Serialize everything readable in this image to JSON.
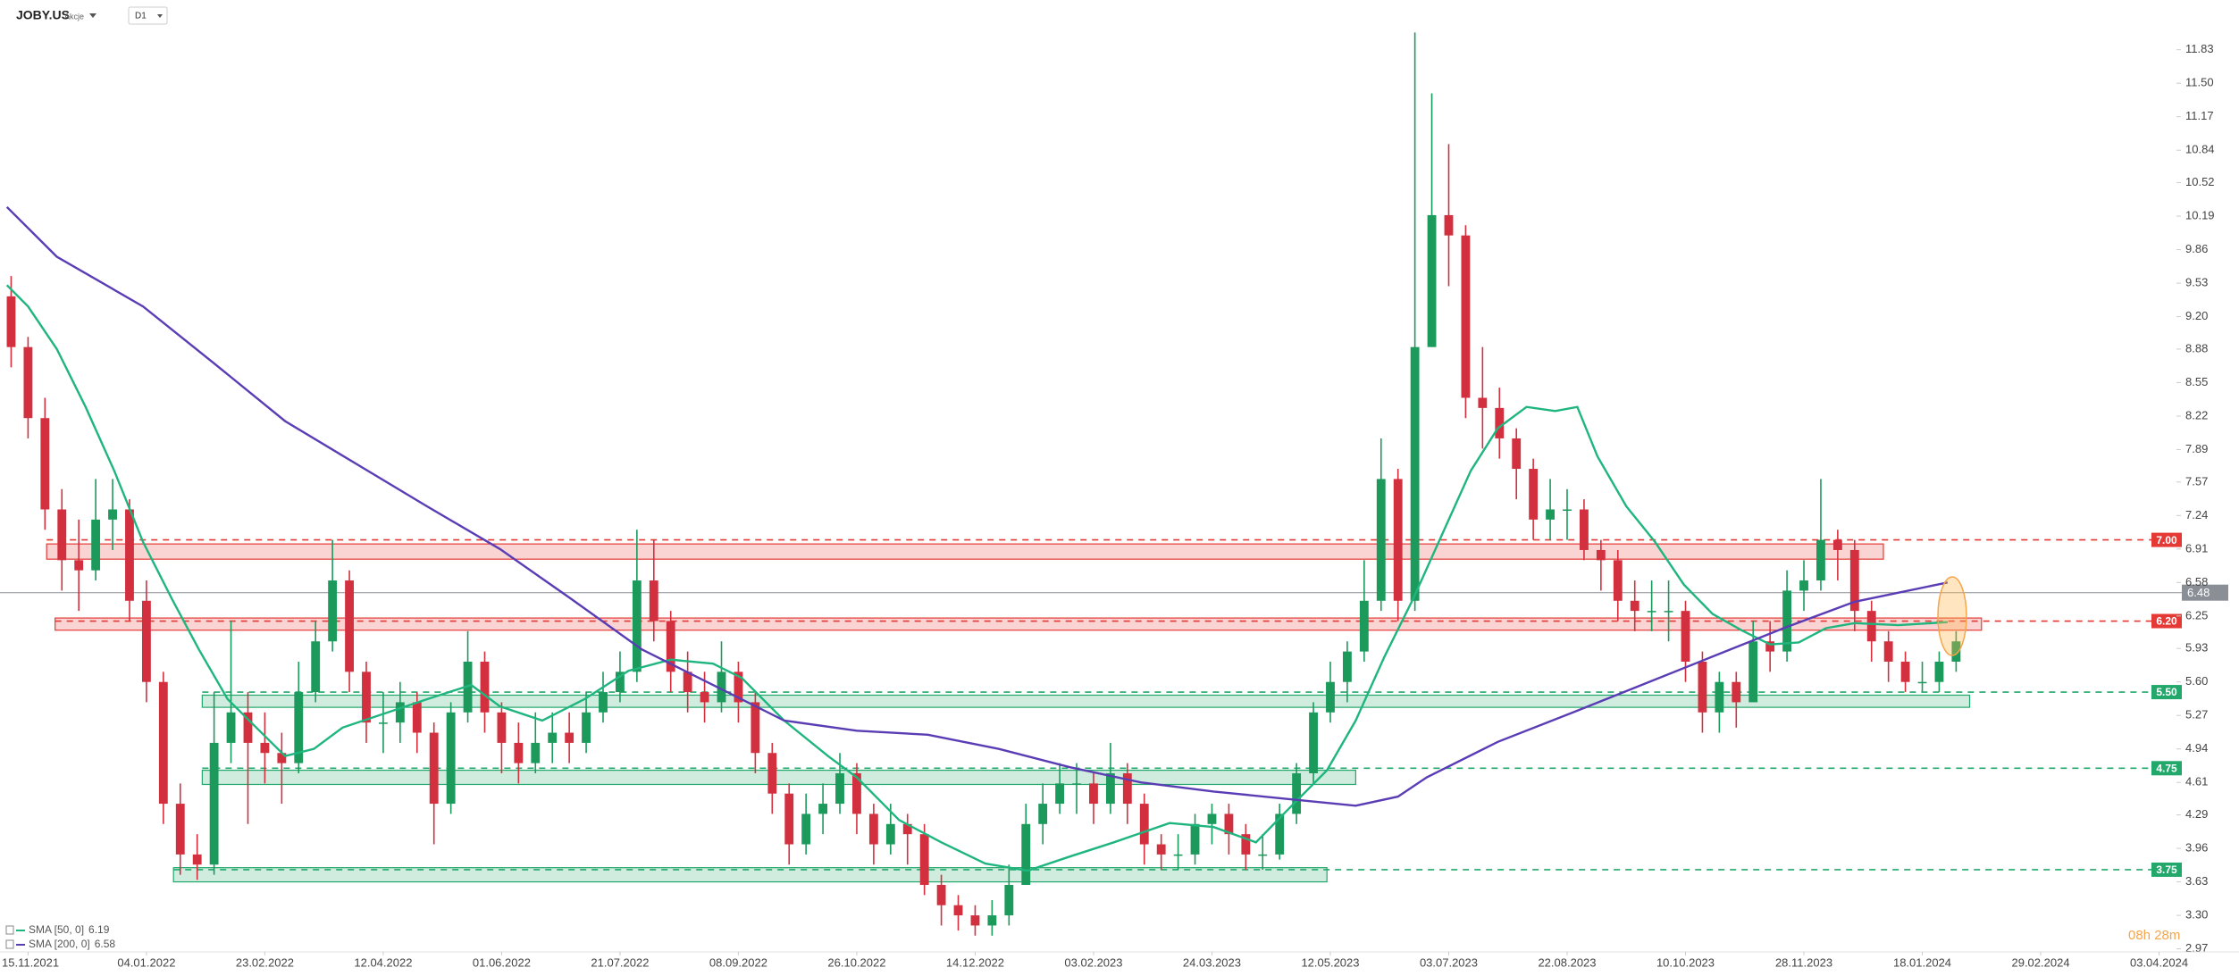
{
  "header": {
    "symbol": "JOBY.US",
    "asset_class": "Akcje",
    "timeframe": "D1"
  },
  "timer": "08h 28m",
  "chart_data": {
    "type": "candlestick",
    "up_color": "#1b9a5c",
    "down_color": "#d3303f",
    "open": [
      9.4,
      8.9,
      8.2,
      7.3,
      6.8,
      6.7,
      7.2,
      7.3,
      6.4,
      5.6,
      4.4,
      3.9,
      3.8,
      5.0,
      5.3,
      5.0,
      4.9,
      4.8,
      5.5,
      6.0,
      6.6,
      5.7,
      5.2,
      5.2,
      5.4,
      5.1,
      4.4,
      5.3,
      5.8,
      5.3,
      5.0,
      4.8,
      5.0,
      5.1,
      5.0,
      5.3,
      5.5,
      5.7,
      6.6,
      6.2,
      5.7,
      5.5,
      5.4,
      5.7,
      5.4,
      4.9,
      4.5,
      4.0,
      4.3,
      4.4,
      4.7,
      4.3,
      4.0,
      4.2,
      4.1,
      3.6,
      3.4,
      3.3,
      3.2,
      3.3,
      3.6,
      4.2,
      4.4,
      4.6,
      4.6,
      4.4,
      4.7,
      4.4,
      4.0,
      3.9,
      3.9,
      4.2,
      4.3,
      4.1,
      3.9,
      3.9,
      4.3,
      4.7,
      5.3,
      5.6,
      5.9,
      6.4,
      7.6,
      6.4,
      8.9,
      10.2,
      10.0,
      8.4,
      8.3,
      8.0,
      7.7,
      7.2,
      7.3,
      7.3,
      6.9,
      6.8,
      6.4,
      6.3,
      6.3,
      6.3,
      5.8,
      5.3,
      5.6,
      5.4,
      6.0,
      5.9,
      6.5,
      6.6,
      7.0,
      6.9,
      6.3,
      6.0,
      5.8,
      5.6,
      5.6,
      5.8
    ],
    "high": [
      9.6,
      9.0,
      8.4,
      7.5,
      7.2,
      7.6,
      7.6,
      7.4,
      6.6,
      5.7,
      4.6,
      4.1,
      5.5,
      6.2,
      5.5,
      5.3,
      5.1,
      5.8,
      6.2,
      7.0,
      6.7,
      5.8,
      5.5,
      5.6,
      5.5,
      5.2,
      5.4,
      6.1,
      5.9,
      5.4,
      5.2,
      5.3,
      5.3,
      5.3,
      5.5,
      5.7,
      5.9,
      7.1,
      7.0,
      6.3,
      5.9,
      5.7,
      6.0,
      5.8,
      5.5,
      5.0,
      4.6,
      4.5,
      4.6,
      4.9,
      4.8,
      4.4,
      4.4,
      4.3,
      4.2,
      3.7,
      3.5,
      3.4,
      3.45,
      3.8,
      4.4,
      4.6,
      4.8,
      4.8,
      4.7,
      5.0,
      4.8,
      4.5,
      4.1,
      4.1,
      4.3,
      4.4,
      4.4,
      4.2,
      4.1,
      4.4,
      4.8,
      5.4,
      5.8,
      6.0,
      6.8,
      8.0,
      7.7,
      12.0,
      11.4,
      10.9,
      10.1,
      8.9,
      8.5,
      8.1,
      7.8,
      7.6,
      7.5,
      7.4,
      7.0,
      6.9,
      6.6,
      6.6,
      6.6,
      6.4,
      5.9,
      5.7,
      5.7,
      6.2,
      6.2,
      6.7,
      6.8,
      7.6,
      7.1,
      7.0,
      6.4,
      6.1,
      5.9,
      5.8,
      5.9,
      6.1
    ],
    "low": [
      8.7,
      8.0,
      7.1,
      6.5,
      6.3,
      6.6,
      6.9,
      6.2,
      5.4,
      4.2,
      3.7,
      3.65,
      3.7,
      4.8,
      4.2,
      4.6,
      4.4,
      4.7,
      5.4,
      5.9,
      5.5,
      5.0,
      4.9,
      5.0,
      4.9,
      4.0,
      4.3,
      5.2,
      5.1,
      4.7,
      4.6,
      4.7,
      4.8,
      4.8,
      4.9,
      5.2,
      5.4,
      5.6,
      6.0,
      5.5,
      5.3,
      5.2,
      5.3,
      5.2,
      4.7,
      4.3,
      3.8,
      3.9,
      4.1,
      4.3,
      4.1,
      3.8,
      3.9,
      3.8,
      3.5,
      3.2,
      3.15,
      3.1,
      3.1,
      3.2,
      3.6,
      4.0,
      4.3,
      4.3,
      4.2,
      4.3,
      4.2,
      3.8,
      3.75,
      3.75,
      3.8,
      4.0,
      3.9,
      3.75,
      3.75,
      3.85,
      4.2,
      4.6,
      5.2,
      5.4,
      5.8,
      6.3,
      6.2,
      6.3,
      8.9,
      9.5,
      8.2,
      7.9,
      7.8,
      7.4,
      7.0,
      7.0,
      7.0,
      6.8,
      6.5,
      6.2,
      6.1,
      6.1,
      6.0,
      5.6,
      5.1,
      5.1,
      5.15,
      5.4,
      5.7,
      5.8,
      6.3,
      6.5,
      6.6,
      6.1,
      5.8,
      5.6,
      5.5,
      5.5,
      5.5,
      5.7
    ],
    "close": [
      8.9,
      8.2,
      7.3,
      6.8,
      6.7,
      7.2,
      7.3,
      6.4,
      5.6,
      4.4,
      3.9,
      3.8,
      5.0,
      5.3,
      5.0,
      4.9,
      4.8,
      5.5,
      6.0,
      6.6,
      5.7,
      5.2,
      5.2,
      5.4,
      5.1,
      4.4,
      5.3,
      5.8,
      5.3,
      5.0,
      4.8,
      5.0,
      5.1,
      5.0,
      5.3,
      5.5,
      5.7,
      6.6,
      6.2,
      5.7,
      5.5,
      5.4,
      5.7,
      5.4,
      4.9,
      4.5,
      4.0,
      4.3,
      4.4,
      4.7,
      4.3,
      4.0,
      4.2,
      4.1,
      3.6,
      3.4,
      3.3,
      3.2,
      3.3,
      3.6,
      4.2,
      4.4,
      4.6,
      4.6,
      4.4,
      4.7,
      4.4,
      4.0,
      3.9,
      3.9,
      4.2,
      4.3,
      4.1,
      3.9,
      3.9,
      4.3,
      4.7,
      5.3,
      5.6,
      5.9,
      6.4,
      7.6,
      6.4,
      8.9,
      10.2,
      10.0,
      8.4,
      8.3,
      8.0,
      7.7,
      7.2,
      7.3,
      7.3,
      6.9,
      6.8,
      6.4,
      6.3,
      6.3,
      6.3,
      5.8,
      5.3,
      5.6,
      5.4,
      6.0,
      5.9,
      6.5,
      6.6,
      7.0,
      6.9,
      6.3,
      6.0,
      5.8,
      5.6,
      5.6,
      5.8,
      6.0
    ],
    "series": [
      {
        "name": "SMA [50, 0]",
        "color": "#1fb57e",
        "last": 6.19,
        "x": [
          0.25,
          1.5,
          3.2,
          4.9,
          6.6,
          8.3,
          10,
          11.6,
          13.3,
          15,
          16.7,
          18.4,
          20.1,
          22.6,
          25.1,
          27.7,
          29.4,
          31.9,
          34.4,
          37,
          39.5,
          42,
          43.7,
          46.2,
          48.8,
          50.5,
          53,
          55.5,
          58.1,
          60.6,
          63.1,
          65.7,
          69,
          71.6,
          74.1,
          75.8,
          78.3,
          80,
          81.7,
          83.4,
          85.1,
          86.8,
          88.4,
          90.1,
          91.8,
          93.1,
          94.3,
          96,
          97.7,
          99.4,
          101.1,
          102.8,
          104.5,
          106.2,
          107.8,
          109.5,
          112.1,
          115
        ],
        "values": [
          9.51,
          9.3,
          8.88,
          8.31,
          7.68,
          6.98,
          6.42,
          5.92,
          5.43,
          5.15,
          4.87,
          4.94,
          5.15,
          5.29,
          5.43,
          5.57,
          5.36,
          5.22,
          5.43,
          5.71,
          5.82,
          5.78,
          5.64,
          5.22,
          4.87,
          4.66,
          4.24,
          4.02,
          3.81,
          3.74,
          3.88,
          4.02,
          4.21,
          4.17,
          4.02,
          4.31,
          4.73,
          5.22,
          5.85,
          6.42,
          7.05,
          7.68,
          8.1,
          8.31,
          8.27,
          8.31,
          7.82,
          7.33,
          6.98,
          6.56,
          6.27,
          6.11,
          5.97,
          5.99,
          6.13,
          6.18,
          6.16,
          6.19
        ]
      },
      {
        "name": "SMA [200, 0]",
        "color": "#5a3db5",
        "last": 6.58,
        "x": [
          0.25,
          3.2,
          8.3,
          12.5,
          16.7,
          20.9,
          25.1,
          29.4,
          33.6,
          37.8,
          42,
          46.2,
          50.5,
          54.7,
          58.9,
          63.1,
          67.3,
          71.6,
          75.8,
          80,
          82.5,
          84.2,
          88.4,
          92.7,
          96.9,
          101.1,
          105.3,
          109.5,
          112.1,
          115
        ],
        "values": [
          10.28,
          9.79,
          9.3,
          8.74,
          8.17,
          7.75,
          7.33,
          6.91,
          6.42,
          5.92,
          5.57,
          5.22,
          5.12,
          5.08,
          4.94,
          4.76,
          4.61,
          4.52,
          4.45,
          4.38,
          4.47,
          4.66,
          5.01,
          5.29,
          5.57,
          5.85,
          6.13,
          6.39,
          6.48,
          6.58
        ]
      }
    ],
    "zones": [
      {
        "x": [
          2.6,
          111.2
        ],
        "range": [
          6.81,
          6.96
        ],
        "color": "#e53935"
      },
      {
        "x": [
          3.1,
          117
        ],
        "range": [
          6.11,
          6.23
        ],
        "color": "#e53935"
      },
      {
        "x": [
          11.8,
          116.3
        ],
        "range": [
          5.35,
          5.47
        ],
        "color": "#23a86b"
      },
      {
        "x": [
          11.8,
          80
        ],
        "range": [
          4.59,
          4.73
        ],
        "color": "#23a86b"
      },
      {
        "x": [
          10.1,
          78.3
        ],
        "range": [
          3.63,
          3.77
        ],
        "color": "#23a86b"
      }
    ],
    "levels": [
      {
        "value": 7,
        "label": "7.00",
        "color": "#e53935",
        "from": 2.6
      },
      {
        "value": 6.2,
        "label": "6.20",
        "color": "#e53935",
        "from": 3.1
      },
      {
        "value": 5.5,
        "label": "5.50",
        "color": "#23a86b",
        "from": 11.8
      },
      {
        "value": 4.75,
        "label": "4.75",
        "color": "#23a86b",
        "from": 11.8
      },
      {
        "value": 3.75,
        "label": "3.75",
        "color": "#23a86b",
        "from": 10.1
      }
    ],
    "last_price": 6.48,
    "last_price_color": "#8a8f96",
    "xlim": [
      0,
      128
    ],
    "xticks": [
      {
        "value": 1.5,
        "label": "15.11.2021"
      },
      {
        "value": 8.5,
        "label": "04.01.2022"
      },
      {
        "value": 15.5,
        "label": "23.02.2022"
      },
      {
        "value": 22.5,
        "label": "12.04.2022"
      },
      {
        "value": 29.5,
        "label": "01.06.2022"
      },
      {
        "value": 36.5,
        "label": "21.07.2022"
      },
      {
        "value": 43.5,
        "label": "08.09.2022"
      },
      {
        "value": 50.5,
        "label": "26.10.2022"
      },
      {
        "value": 57.5,
        "label": "14.12.2022"
      },
      {
        "value": 64.5,
        "label": "03.02.2023"
      },
      {
        "value": 71.5,
        "label": "24.03.2023"
      },
      {
        "value": 78.5,
        "label": "12.05.2023"
      },
      {
        "value": 85.5,
        "label": "03.07.2023"
      },
      {
        "value": 92.5,
        "label": "22.08.2023"
      },
      {
        "value": 99.5,
        "label": "10.10.2023"
      },
      {
        "value": 106.5,
        "label": "28.11.2023"
      },
      {
        "value": 113.5,
        "label": "18.01.2024"
      },
      {
        "value": 120.5,
        "label": "29.02.2024"
      },
      {
        "value": 127.5,
        "label": "03.04.2024"
      }
    ],
    "ylim": [
      2.94,
      12.32
    ],
    "yticks": [
      11.83,
      {
        "value": 11.5,
        "label": "11.50"
      },
      11.17,
      10.84,
      10.52,
      10.19,
      9.86,
      9.53,
      {
        "value": 9.2,
        "label": "9.20"
      },
      8.88,
      8.55,
      8.22,
      7.89,
      7.57,
      7.24,
      6.91,
      6.58,
      6.25,
      5.93,
      {
        "value": 5.6,
        "label": "5.60"
      },
      5.27,
      4.94,
      4.61,
      4.29,
      3.96,
      3.63,
      {
        "value": 3.3,
        "label": "3.30"
      },
      2.97
    ],
    "grid": false
  }
}
